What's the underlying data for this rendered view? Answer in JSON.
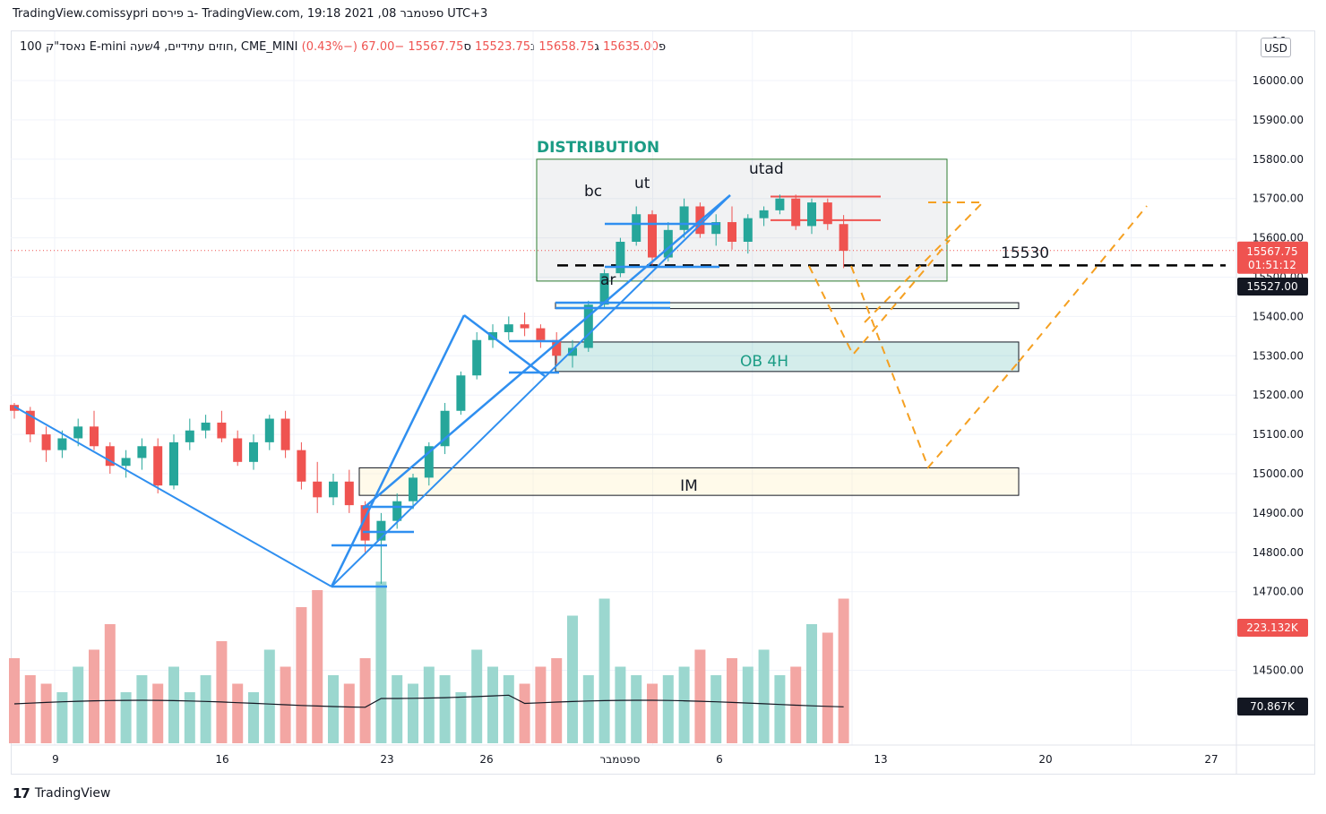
{
  "header": {
    "title_line": "TradingView.comissypri ב פירסם- TradingView.com, 19:18 2021 ,08 ספטמבר UTC+3"
  },
  "legend": {
    "symbol": "נאסד\"ק 100 E-mini חוזים עתידיים, 4שעה, CME_MINI",
    "open_label": "פ",
    "open": "15635.00",
    "high_label": "ג",
    "high": "15658.75",
    "low_label": "נ",
    "low": "15523.75",
    "close_label": "ס",
    "close": "15567.75",
    "change": "−67.00 (−0.43%)"
  },
  "currency_button": "USD",
  "footer": {
    "brand": "TradingView",
    "logo_mark": "17"
  },
  "colors": {
    "up": "#26a69a",
    "down": "#ef5350",
    "vol_up": "#9bd7cf",
    "vol_down": "#f3a6a3",
    "trend": "#2f8ff0",
    "orange": "#f5a021",
    "red_line": "#ef5350"
  },
  "chart_data": {
    "type": "candlestick",
    "timeframe": "4H",
    "y_axis": {
      "min": 14400,
      "max": 16100,
      "ticks": [
        14500,
        14700,
        14800,
        14900,
        15000,
        15100,
        15200,
        15300,
        15400,
        15500,
        15600,
        15700,
        15800,
        15900,
        16000
      ],
      "tick_labels": [
        "14500.00",
        "14700.00",
        "14800.00",
        "14900.00",
        "15000.00",
        "15100.00",
        "15200.00",
        "15300.00",
        "15400.00",
        "15500.00",
        "15600.00",
        "15700.00",
        "15800.00",
        "15900.00",
        "16000.00"
      ],
      "top_partial_label": "16"
    },
    "x_axis": {
      "tick_labels": [
        "9",
        "16",
        "23",
        "26",
        "ספטמבר",
        "6",
        "13",
        "20",
        "27"
      ],
      "tick_positions": [
        0,
        6,
        12,
        15,
        17.5,
        20,
        27,
        34,
        41
      ]
    },
    "price_badges": [
      {
        "label": "15567.75",
        "value": 15567.75,
        "sub": "01:51:12",
        "color": "#ef5350"
      },
      {
        "label": "15527.00",
        "value": 15527,
        "color": "#131722"
      }
    ],
    "volume_badges": [
      {
        "label": "223.132K",
        "color": "#ef5350"
      },
      {
        "label": "70.867K",
        "color": "#131722"
      }
    ],
    "annotations": {
      "distribution": "DISTRIBUTION",
      "bc": "bc",
      "ut": "ut",
      "utad": "utad",
      "ar": "ar",
      "level_label": "15530",
      "ob_label": "OB 4H",
      "im_label": "IM"
    },
    "levels": {
      "dashed_level": 15530,
      "distribution_box": [
        15490,
        15800
      ],
      "ob_box": [
        15260,
        15335
      ],
      "im_box": [
        14945,
        15015
      ],
      "thin_box": [
        15420,
        15435
      ],
      "red_lines": [
        15705,
        15645
      ]
    },
    "candles": [
      [
        15175,
        15180,
        15140,
        15160
      ],
      [
        15160,
        15170,
        15080,
        15100
      ],
      [
        15100,
        15120,
        15030,
        15060
      ],
      [
        15060,
        15110,
        15040,
        15090
      ],
      [
        15090,
        15140,
        15070,
        15120
      ],
      [
        15120,
        15160,
        15060,
        15070
      ],
      [
        15070,
        15080,
        15000,
        15020
      ],
      [
        15020,
        15060,
        14990,
        15040
      ],
      [
        15040,
        15090,
        15010,
        15070
      ],
      [
        15070,
        15090,
        14950,
        14970
      ],
      [
        14970,
        15100,
        14960,
        15080
      ],
      [
        15080,
        15140,
        15060,
        15110
      ],
      [
        15110,
        15150,
        15090,
        15130
      ],
      [
        15130,
        15160,
        15080,
        15090
      ],
      [
        15090,
        15110,
        15020,
        15030
      ],
      [
        15030,
        15100,
        15010,
        15080
      ],
      [
        15080,
        15150,
        15060,
        15140
      ],
      [
        15140,
        15160,
        15040,
        15060
      ],
      [
        15060,
        15080,
        14960,
        14980
      ],
      [
        14980,
        15030,
        14900,
        14940
      ],
      [
        14940,
        15000,
        14920,
        14980
      ],
      [
        14980,
        15010,
        14900,
        14920
      ],
      [
        14920,
        14930,
        14800,
        14830
      ],
      [
        14830,
        14900,
        14720,
        14880
      ],
      [
        14880,
        14950,
        14860,
        14930
      ],
      [
        14930,
        15000,
        14910,
        14990
      ],
      [
        14990,
        15080,
        14970,
        15070
      ],
      [
        15070,
        15180,
        15050,
        15160
      ],
      [
        15160,
        15260,
        15150,
        15250
      ],
      [
        15250,
        15360,
        15240,
        15340
      ],
      [
        15340,
        15380,
        15320,
        15360
      ],
      [
        15360,
        15400,
        15340,
        15380
      ],
      [
        15380,
        15410,
        15350,
        15370
      ],
      [
        15370,
        15380,
        15320,
        15340
      ],
      [
        15340,
        15360,
        15280,
        15300
      ],
      [
        15300,
        15340,
        15270,
        15320
      ],
      [
        15320,
        15440,
        15310,
        15430
      ],
      [
        15430,
        15520,
        15420,
        15510
      ],
      [
        15510,
        15600,
        15500,
        15590
      ],
      [
        15590,
        15680,
        15580,
        15660
      ],
      [
        15660,
        15670,
        15530,
        15550
      ],
      [
        15550,
        15640,
        15540,
        15620
      ],
      [
        15620,
        15700,
        15600,
        15680
      ],
      [
        15680,
        15690,
        15600,
        15610
      ],
      [
        15610,
        15660,
        15580,
        15640
      ],
      [
        15640,
        15680,
        15570,
        15590
      ],
      [
        15590,
        15660,
        15560,
        15650
      ],
      [
        15650,
        15680,
        15630,
        15670
      ],
      [
        15670,
        15710,
        15660,
        15700
      ],
      [
        15700,
        15710,
        15620,
        15630
      ],
      [
        15630,
        15700,
        15610,
        15690
      ],
      [
        15690,
        15700,
        15620,
        15635
      ],
      [
        15635,
        15658,
        15523,
        15567
      ]
    ],
    "volumes": [
      0.5,
      0.4,
      0.35,
      0.3,
      0.45,
      0.55,
      0.7,
      0.3,
      0.4,
      0.35,
      0.45,
      0.3,
      0.4,
      0.6,
      0.35,
      0.3,
      0.55,
      0.45,
      0.8,
      0.9,
      0.4,
      0.35,
      0.5,
      0.95,
      0.4,
      0.35,
      0.45,
      0.4,
      0.3,
      0.55,
      0.45,
      0.4,
      0.35,
      0.45,
      0.5,
      0.75,
      0.4,
      0.85,
      0.45,
      0.4,
      0.35,
      0.4,
      0.45,
      0.55,
      0.4,
      0.5,
      0.45,
      0.55,
      0.4,
      0.45,
      0.7,
      0.65,
      0.85
    ]
  }
}
